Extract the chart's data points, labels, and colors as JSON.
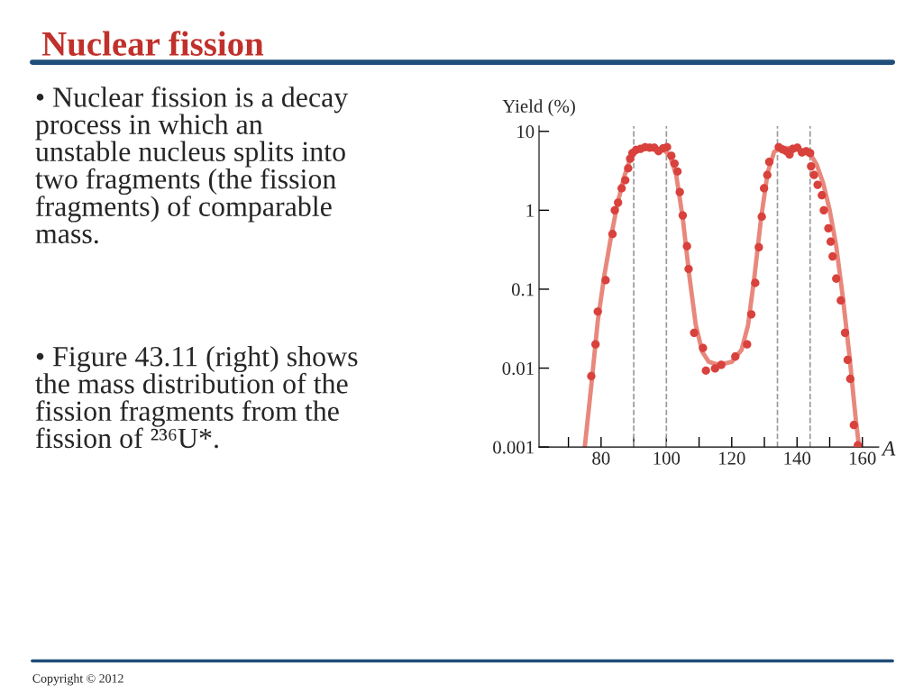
{
  "chart_data": {
    "type": "scatter",
    "title": "Nuclear fission",
    "xlabel": "A",
    "ylabel": "Yield (%)",
    "annotations": [
      "• Nuclear fission is a decay\nprocess in which an\nunstable nucleus splits into\ntwo fragments (the fission\nfragments) of comparable\nmass.",
      "• Figure 43.11 (right) shows\nthe mass distribution of the\nfission fragments from the\nfission of ²³⁶U*.",
      "Copyright © 2012"
    ],
    "series": [
      {
        "color": "#d9413c",
        "marker": "circle",
        "x": [
          77.0,
          78.3,
          79.0,
          81.4,
          83.5,
          84.2,
          85.2,
          86.3,
          87.4,
          88.3,
          88.9,
          89.6,
          90.7,
          92.1,
          93.5,
          94.9,
          96.3,
          97.6,
          99.0,
          100.2,
          101.5,
          102.5,
          103.4,
          104.1,
          105.0,
          106.3,
          106.8,
          108.5,
          111.2,
          112.1,
          114.9,
          116.8,
          121.1,
          124.7,
          126.0,
          127.2,
          128.3,
          129.2,
          129.9,
          130.9,
          131.5,
          134.4,
          135.5,
          136.7,
          137.7,
          138.7,
          140.1,
          141.5,
          142.8,
          144.0,
          144.3,
          145.2,
          146.3,
          147.6,
          148.2,
          149.6,
          150.3,
          150.9,
          152.0,
          153.4,
          154.7,
          155.5,
          156.3,
          157.4,
          158.6
        ],
        "values": [
          0.0079,
          0.02,
          0.052,
          0.13,
          0.5,
          1.0,
          1.25,
          1.9,
          2.4,
          3.4,
          4.5,
          5.3,
          5.8,
          6.0,
          6.3,
          6.2,
          6.2,
          5.6,
          6.1,
          6.3,
          4.9,
          3.9,
          3.1,
          1.7,
          0.86,
          0.35,
          0.18,
          0.028,
          0.018,
          0.0093,
          0.0099,
          0.011,
          0.014,
          0.02,
          0.048,
          0.12,
          0.34,
          0.83,
          1.9,
          2.8,
          4.1,
          6.3,
          5.9,
          5.6,
          5.1,
          6.0,
          6.2,
          5.4,
          5.6,
          5.3,
          3.6,
          2.8,
          2.1,
          1.55,
          1.0,
          0.59,
          0.4,
          0.26,
          0.136,
          0.072,
          0.028,
          0.0127,
          0.0073,
          0.0019,
          0.00105
        ]
      },
      {
        "type": "line",
        "color": "#e8887c",
        "marker": "none",
        "line_style": "solid",
        "x": [
          75,
          77,
          79,
          81,
          83,
          85,
          87,
          89,
          91,
          95,
          99,
          101,
          103,
          105,
          107,
          109,
          111,
          113,
          116,
          120,
          123,
          125,
          127,
          129,
          131,
          133,
          135,
          140,
          144,
          146,
          148,
          150,
          152,
          154,
          156,
          158,
          159
        ],
        "values": [
          0.001,
          0.006,
          0.04,
          0.15,
          0.45,
          1.2,
          2.6,
          4.6,
          5.8,
          6.2,
          5.9,
          5.0,
          2.8,
          0.8,
          0.15,
          0.035,
          0.016,
          0.012,
          0.011,
          0.012,
          0.017,
          0.035,
          0.15,
          0.8,
          3.0,
          5.5,
          6.2,
          6.0,
          5.2,
          3.8,
          2.2,
          1.0,
          0.35,
          0.08,
          0.015,
          0.0022,
          0.001
        ]
      }
    ],
    "ref_lines": [
      {
        "axis": "x",
        "value": 90,
        "color": "#999999",
        "line_style": "dashed"
      },
      {
        "axis": "x",
        "value": 100,
        "color": "#999999",
        "line_style": "dashed"
      },
      {
        "axis": "x",
        "value": 134,
        "color": "#999999",
        "line_style": "dashed"
      },
      {
        "axis": "x",
        "value": 144,
        "color": "#999999",
        "line_style": "dashed"
      }
    ],
    "log": "y",
    "xlim": [
      61,
      165
    ],
    "ylim": [
      0.001,
      11.7
    ],
    "xticks": [
      {
        "value": 70,
        "label": null
      },
      80,
      {
        "value": 90,
        "label": null
      },
      100,
      {
        "value": 110,
        "label": null
      },
      120,
      {
        "value": 130,
        "label": null
      },
      140,
      {
        "value": 150,
        "label": null
      },
      160
    ],
    "yticks": [
      0.001,
      0.01,
      0.1,
      1,
      10
    ],
    "grid": false,
    "legend": false
  }
}
